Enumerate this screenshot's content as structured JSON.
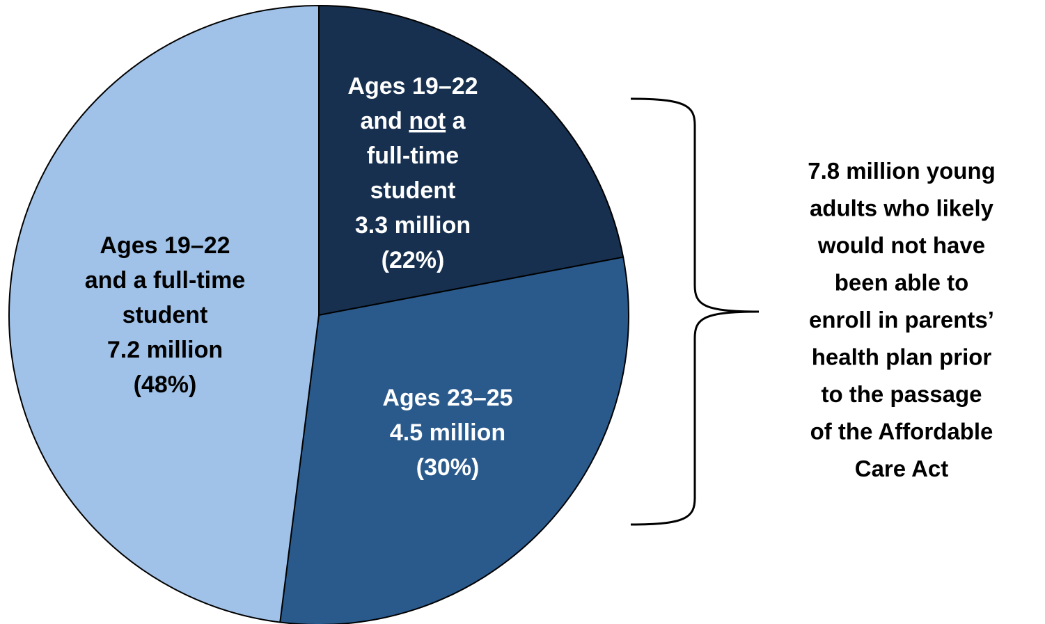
{
  "chart_data": {
    "type": "pie",
    "slices": [
      {
        "lines": [
          "Ages 19–22",
          "and not a",
          "full-time",
          "student"
        ],
        "value_label": "3.3 million",
        "pct_label": "(22%)",
        "value": 3.3,
        "percent": 22,
        "color": "#17304f",
        "text_color": "#ffffff"
      },
      {
        "lines": [
          "Ages 23–25"
        ],
        "value_label": "4.5 million",
        "pct_label": "(30%)",
        "value": 4.5,
        "percent": 30,
        "color": "#2a5a8c",
        "text_color": "#ffffff"
      },
      {
        "lines": [
          "Ages 19–22",
          "and a full-time",
          "student"
        ],
        "value_label": "7.2 million",
        "pct_label": "(48%)",
        "value": 7.2,
        "percent": 48,
        "color": "#a0c2e8",
        "text_color": "#000000"
      }
    ],
    "annotation": {
      "lines": [
        "7.8 million young",
        "adults who likely",
        "would not have",
        "been able to",
        "enroll in parents’",
        "health plan prior",
        "to the passage",
        "of the Affordable",
        "Care Act"
      ]
    }
  }
}
